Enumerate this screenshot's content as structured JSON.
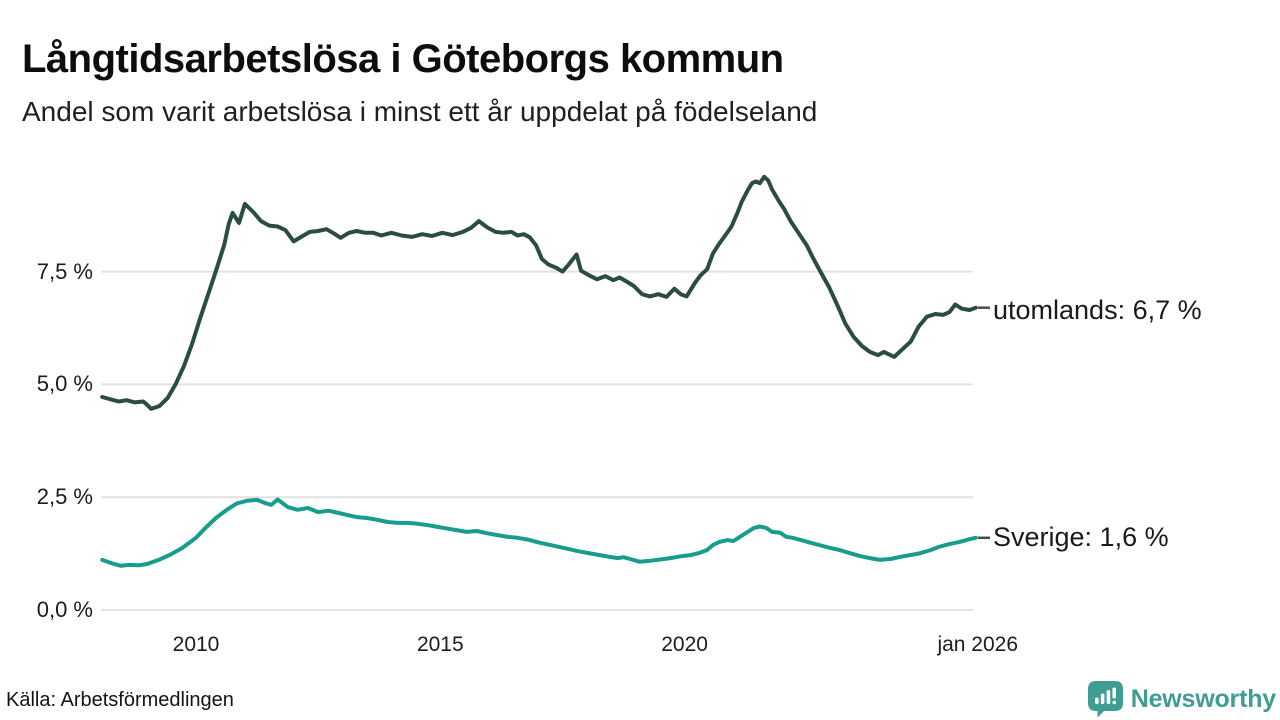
{
  "header": {
    "title": "Långtidsarbetslösa i Göteborgs kommun",
    "subtitle": "Andel som varit arbetslösa i minst ett år uppdelat på födelseland"
  },
  "footer": {
    "source": "Källa: Arbetsförmedlingen",
    "logo_text": "Newsworthy",
    "logo_icon": "speech-bubble-bar-chart-icon"
  },
  "colors": {
    "utomlands_line": "#2b4c43",
    "sverige_line": "#189c8b",
    "grid": "#e2e2e2",
    "label_connector": "#4a4a4a",
    "brand_teal": "#3f9d93"
  },
  "chart_data": {
    "type": "line",
    "title": "Långtidsarbetslösa i Göteborgs kommun",
    "subtitle": "Andel som varit arbetslösa i minst ett år uppdelat på födelseland",
    "x_unit": "year (decimal, monthly series)",
    "y_unit": "percent",
    "xlim": [
      2008.0,
      2026.1
    ],
    "ylim": [
      0,
      10.5
    ],
    "grid": "horizontal-only",
    "legend_position": "right-end-labels",
    "yticks": [
      {
        "value": 7.5,
        "label": "7,5 %"
      },
      {
        "value": 5.0,
        "label": "5,0 %"
      },
      {
        "value": 2.5,
        "label": "2,5 %"
      },
      {
        "value": 0.0,
        "label": "0,0 %"
      }
    ],
    "xticks": [
      {
        "value": 2010,
        "label": "2010"
      },
      {
        "value": 2015,
        "label": "2015"
      },
      {
        "value": 2020,
        "label": "2020"
      },
      {
        "value": 2026.0,
        "label": "jan 2026"
      }
    ],
    "series": [
      {
        "name": "utomlands",
        "end_label": "utomlands: 6,7 %",
        "last_value": 6.7,
        "color": "#2b4c43",
        "points": [
          [
            2008.08,
            4.72
          ],
          [
            2008.25,
            4.67
          ],
          [
            2008.42,
            4.62
          ],
          [
            2008.58,
            4.65
          ],
          [
            2008.75,
            4.6
          ],
          [
            2008.92,
            4.62
          ],
          [
            2009.0,
            4.55
          ],
          [
            2009.08,
            4.46
          ],
          [
            2009.25,
            4.52
          ],
          [
            2009.42,
            4.7
          ],
          [
            2009.58,
            5.0
          ],
          [
            2009.75,
            5.4
          ],
          [
            2009.92,
            5.9
          ],
          [
            2010.08,
            6.45
          ],
          [
            2010.25,
            7.0
          ],
          [
            2010.42,
            7.55
          ],
          [
            2010.58,
            8.1
          ],
          [
            2010.67,
            8.55
          ],
          [
            2010.75,
            8.8
          ],
          [
            2010.88,
            8.58
          ],
          [
            2011.0,
            9.0
          ],
          [
            2011.17,
            8.82
          ],
          [
            2011.33,
            8.62
          ],
          [
            2011.5,
            8.52
          ],
          [
            2011.67,
            8.5
          ],
          [
            2011.83,
            8.42
          ],
          [
            2012.0,
            8.17
          ],
          [
            2012.17,
            8.28
          ],
          [
            2012.33,
            8.38
          ],
          [
            2012.5,
            8.4
          ],
          [
            2012.67,
            8.44
          ],
          [
            2012.83,
            8.34
          ],
          [
            2012.96,
            8.25
          ],
          [
            2013.13,
            8.36
          ],
          [
            2013.29,
            8.4
          ],
          [
            2013.46,
            8.36
          ],
          [
            2013.63,
            8.36
          ],
          [
            2013.79,
            8.3
          ],
          [
            2014.0,
            8.36
          ],
          [
            2014.21,
            8.3
          ],
          [
            2014.42,
            8.27
          ],
          [
            2014.63,
            8.33
          ],
          [
            2014.83,
            8.29
          ],
          [
            2015.04,
            8.36
          ],
          [
            2015.25,
            8.31
          ],
          [
            2015.46,
            8.38
          ],
          [
            2015.63,
            8.47
          ],
          [
            2015.79,
            8.62
          ],
          [
            2015.96,
            8.48
          ],
          [
            2016.13,
            8.38
          ],
          [
            2016.29,
            8.36
          ],
          [
            2016.46,
            8.38
          ],
          [
            2016.58,
            8.3
          ],
          [
            2016.71,
            8.33
          ],
          [
            2016.83,
            8.26
          ],
          [
            2016.96,
            8.08
          ],
          [
            2017.08,
            7.78
          ],
          [
            2017.21,
            7.66
          ],
          [
            2017.38,
            7.58
          ],
          [
            2017.5,
            7.5
          ],
          [
            2017.63,
            7.66
          ],
          [
            2017.79,
            7.88
          ],
          [
            2017.88,
            7.52
          ],
          [
            2018.04,
            7.42
          ],
          [
            2018.21,
            7.33
          ],
          [
            2018.38,
            7.4
          ],
          [
            2018.54,
            7.31
          ],
          [
            2018.67,
            7.37
          ],
          [
            2018.83,
            7.27
          ],
          [
            2018.96,
            7.18
          ],
          [
            2019.13,
            7.0
          ],
          [
            2019.29,
            6.95
          ],
          [
            2019.46,
            7.0
          ],
          [
            2019.63,
            6.94
          ],
          [
            2019.79,
            7.12
          ],
          [
            2019.92,
            7.0
          ],
          [
            2020.04,
            6.95
          ],
          [
            2020.21,
            7.25
          ],
          [
            2020.33,
            7.42
          ],
          [
            2020.46,
            7.55
          ],
          [
            2020.58,
            7.9
          ],
          [
            2020.71,
            8.12
          ],
          [
            2020.83,
            8.3
          ],
          [
            2020.96,
            8.5
          ],
          [
            2021.08,
            8.8
          ],
          [
            2021.17,
            9.05
          ],
          [
            2021.29,
            9.3
          ],
          [
            2021.38,
            9.46
          ],
          [
            2021.46,
            9.5
          ],
          [
            2021.54,
            9.46
          ],
          [
            2021.63,
            9.6
          ],
          [
            2021.71,
            9.52
          ],
          [
            2021.79,
            9.32
          ],
          [
            2021.92,
            9.08
          ],
          [
            2022.04,
            8.88
          ],
          [
            2022.17,
            8.62
          ],
          [
            2022.33,
            8.36
          ],
          [
            2022.5,
            8.08
          ],
          [
            2022.63,
            7.8
          ],
          [
            2022.79,
            7.48
          ],
          [
            2022.96,
            7.15
          ],
          [
            2023.13,
            6.75
          ],
          [
            2023.29,
            6.35
          ],
          [
            2023.46,
            6.05
          ],
          [
            2023.63,
            5.85
          ],
          [
            2023.79,
            5.72
          ],
          [
            2023.96,
            5.65
          ],
          [
            2024.08,
            5.72
          ],
          [
            2024.29,
            5.61
          ],
          [
            2024.46,
            5.78
          ],
          [
            2024.63,
            5.95
          ],
          [
            2024.79,
            6.28
          ],
          [
            2024.96,
            6.5
          ],
          [
            2025.13,
            6.56
          ],
          [
            2025.29,
            6.54
          ],
          [
            2025.42,
            6.6
          ],
          [
            2025.54,
            6.77
          ],
          [
            2025.67,
            6.68
          ],
          [
            2025.83,
            6.65
          ],
          [
            2025.96,
            6.7
          ]
        ]
      },
      {
        "name": "Sverige",
        "end_label": "Sverige: 1,6 %",
        "last_value": 1.6,
        "color": "#189c8b",
        "points": [
          [
            2008.08,
            1.11
          ],
          [
            2008.29,
            1.03
          ],
          [
            2008.46,
            0.98
          ],
          [
            2008.63,
            1.0
          ],
          [
            2008.83,
            0.99
          ],
          [
            2009.0,
            1.02
          ],
          [
            2009.21,
            1.1
          ],
          [
            2009.46,
            1.22
          ],
          [
            2009.71,
            1.37
          ],
          [
            2010.0,
            1.6
          ],
          [
            2010.21,
            1.84
          ],
          [
            2010.42,
            2.05
          ],
          [
            2010.63,
            2.22
          ],
          [
            2010.83,
            2.36
          ],
          [
            2011.04,
            2.42
          ],
          [
            2011.25,
            2.44
          ],
          [
            2011.42,
            2.37
          ],
          [
            2011.54,
            2.33
          ],
          [
            2011.67,
            2.45
          ],
          [
            2011.88,
            2.28
          ],
          [
            2012.08,
            2.22
          ],
          [
            2012.29,
            2.26
          ],
          [
            2012.5,
            2.17
          ],
          [
            2012.71,
            2.2
          ],
          [
            2012.92,
            2.15
          ],
          [
            2013.08,
            2.11
          ],
          [
            2013.29,
            2.06
          ],
          [
            2013.5,
            2.04
          ],
          [
            2013.71,
            2.0
          ],
          [
            2013.92,
            1.95
          ],
          [
            2014.13,
            1.93
          ],
          [
            2014.33,
            1.93
          ],
          [
            2014.54,
            1.91
          ],
          [
            2014.75,
            1.88
          ],
          [
            2014.96,
            1.84
          ],
          [
            2015.17,
            1.8
          ],
          [
            2015.33,
            1.77
          ],
          [
            2015.54,
            1.73
          ],
          [
            2015.75,
            1.75
          ],
          [
            2015.96,
            1.7
          ],
          [
            2016.17,
            1.66
          ],
          [
            2016.38,
            1.62
          ],
          [
            2016.58,
            1.6
          ],
          [
            2016.79,
            1.56
          ],
          [
            2017.0,
            1.5
          ],
          [
            2017.21,
            1.45
          ],
          [
            2017.42,
            1.4
          ],
          [
            2017.63,
            1.35
          ],
          [
            2017.83,
            1.3
          ],
          [
            2018.04,
            1.26
          ],
          [
            2018.25,
            1.22
          ],
          [
            2018.46,
            1.18
          ],
          [
            2018.63,
            1.15
          ],
          [
            2018.75,
            1.17
          ],
          [
            2018.92,
            1.12
          ],
          [
            2019.08,
            1.07
          ],
          [
            2019.29,
            1.09
          ],
          [
            2019.5,
            1.12
          ],
          [
            2019.71,
            1.15
          ],
          [
            2019.92,
            1.19
          ],
          [
            2020.13,
            1.22
          ],
          [
            2020.29,
            1.26
          ],
          [
            2020.46,
            1.33
          ],
          [
            2020.58,
            1.44
          ],
          [
            2020.71,
            1.51
          ],
          [
            2020.88,
            1.55
          ],
          [
            2021.0,
            1.53
          ],
          [
            2021.13,
            1.62
          ],
          [
            2021.29,
            1.73
          ],
          [
            2021.42,
            1.82
          ],
          [
            2021.54,
            1.85
          ],
          [
            2021.67,
            1.82
          ],
          [
            2021.79,
            1.73
          ],
          [
            2021.96,
            1.71
          ],
          [
            2022.08,
            1.62
          ],
          [
            2022.21,
            1.6
          ],
          [
            2022.38,
            1.55
          ],
          [
            2022.58,
            1.49
          ],
          [
            2022.75,
            1.44
          ],
          [
            2022.96,
            1.38
          ],
          [
            2023.17,
            1.33
          ],
          [
            2023.38,
            1.26
          ],
          [
            2023.58,
            1.2
          ],
          [
            2023.79,
            1.15
          ],
          [
            2024.0,
            1.11
          ],
          [
            2024.21,
            1.13
          ],
          [
            2024.42,
            1.18
          ],
          [
            2024.63,
            1.22
          ],
          [
            2024.83,
            1.26
          ],
          [
            2025.04,
            1.33
          ],
          [
            2025.21,
            1.4
          ],
          [
            2025.42,
            1.46
          ],
          [
            2025.63,
            1.51
          ],
          [
            2025.83,
            1.57
          ],
          [
            2025.96,
            1.6
          ]
        ]
      }
    ]
  }
}
